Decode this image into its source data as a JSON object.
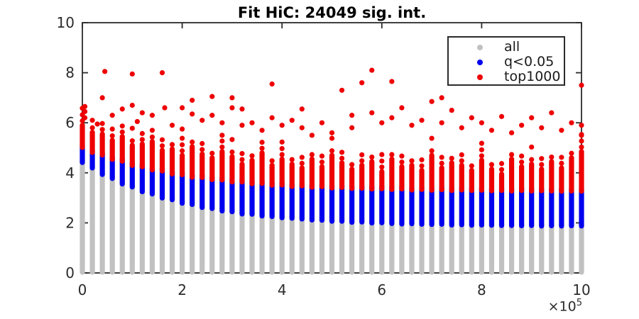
{
  "style": {
    "axis_color": "#2b2b2b",
    "tick_label_color": "#2b2b2b",
    "title_color": "#000000",
    "background": "#ffffff"
  },
  "chart_data": {
    "type": "scatter",
    "title": "Fit HiC: 24049 sig. int.",
    "grid": false,
    "legend_position": "top-right",
    "x_axis": {
      "lim": [
        0,
        10
      ],
      "tick_values": [
        0,
        2,
        4,
        6,
        8,
        10
      ],
      "tick_labels": [
        "0",
        "2",
        "4",
        "6",
        "8",
        "10"
      ],
      "multiplier": "×10",
      "exponent": "5"
    },
    "y_axis": {
      "lim": [
        0,
        10
      ],
      "tick_values": [
        0,
        2,
        4,
        6,
        8,
        10
      ],
      "tick_labels": [
        "0",
        "2",
        "4",
        "6",
        "8",
        "10"
      ]
    },
    "legend": {
      "items": [
        {
          "label": "all",
          "color": "#c1c1c1"
        },
        {
          "label": "q<0.05",
          "color": "#0000ee"
        },
        {
          "label": "top1000",
          "color": "#ee0000"
        }
      ]
    },
    "columns_format": [
      "x_1e5",
      "all_top",
      "q_top",
      "top1000_top"
    ],
    "columns_base_y": 0,
    "columns": [
      [
        0.0,
        4.5,
        5.1,
        5.9
      ],
      [
        0.2,
        4.28,
        4.9,
        5.62
      ],
      [
        0.4,
        4.02,
        4.8,
        5.55
      ],
      [
        0.6,
        3.86,
        4.62,
        5.3
      ],
      [
        0.8,
        3.64,
        4.55,
        5.45
      ],
      [
        1.0,
        3.52,
        4.38,
        5.1
      ],
      [
        1.2,
        3.33,
        4.33,
        5.15
      ],
      [
        1.4,
        3.24,
        4.2,
        5.25
      ],
      [
        1.6,
        3.08,
        4.16,
        4.9
      ],
      [
        1.8,
        3.01,
        4.04,
        4.95
      ],
      [
        2.0,
        2.87,
        4.01,
        4.7
      ],
      [
        2.2,
        2.82,
        3.91,
        5.05
      ],
      [
        2.4,
        2.7,
        3.9,
        4.75
      ],
      [
        2.6,
        2.66,
        3.81,
        4.6
      ],
      [
        2.8,
        2.56,
        3.8,
        4.85
      ],
      [
        3.0,
        2.53,
        3.72,
        4.65
      ],
      [
        3.2,
        2.44,
        3.72,
        4.35
      ],
      [
        3.4,
        2.43,
        3.65,
        4.5
      ],
      [
        3.6,
        2.36,
        3.66,
        4.8
      ],
      [
        3.8,
        2.34,
        3.59,
        4.3
      ],
      [
        4.0,
        2.29,
        3.6,
        4.55
      ],
      [
        4.2,
        2.27,
        3.54,
        4.35
      ],
      [
        4.4,
        2.24,
        3.56,
        4.2
      ],
      [
        4.6,
        2.2,
        3.51,
        4.55
      ],
      [
        4.8,
        2.19,
        3.53,
        4.25
      ],
      [
        5.0,
        2.15,
        3.48,
        4.7
      ],
      [
        5.2,
        2.15,
        3.5,
        4.4
      ],
      [
        5.4,
        2.11,
        3.46,
        4.15
      ],
      [
        5.6,
        2.12,
        3.47,
        4.3
      ],
      [
        5.8,
        2.08,
        3.44,
        4.45
      ],
      [
        6.0,
        2.09,
        3.45,
        4.05
      ],
      [
        6.2,
        2.06,
        3.42,
        4.55
      ],
      [
        6.4,
        2.04,
        3.44,
        4.25
      ],
      [
        6.6,
        2.05,
        3.4,
        4.3
      ],
      [
        6.8,
        2.03,
        3.42,
        4.1
      ],
      [
        7.0,
        2.02,
        3.39,
        4.7
      ],
      [
        7.2,
        2.03,
        3.41,
        4.2
      ],
      [
        7.4,
        2.0,
        3.38,
        4.4
      ],
      [
        7.6,
        2.01,
        3.4,
        4.3
      ],
      [
        7.8,
        1.99,
        3.38,
        4.1
      ],
      [
        8.0,
        2.0,
        3.39,
        4.5
      ],
      [
        8.2,
        1.99,
        3.37,
        4.15
      ],
      [
        8.4,
        1.98,
        3.38,
        3.95
      ],
      [
        8.6,
        1.98,
        3.36,
        4.55
      ],
      [
        8.8,
        1.97,
        3.38,
        4.25
      ],
      [
        9.0,
        1.98,
        3.36,
        4.35
      ],
      [
        9.2,
        1.96,
        3.37,
        4.15
      ],
      [
        9.4,
        1.97,
        3.36,
        4.45
      ],
      [
        9.6,
        1.96,
        3.35,
        4.2
      ],
      [
        9.8,
        1.97,
        3.36,
        4.6
      ],
      [
        10.0,
        1.96,
        3.35,
        4.85
      ]
    ],
    "fringe_offsets": [
      0.18,
      0.42,
      0.68
    ],
    "outliers": [
      [
        0.05,
        6.2
      ],
      [
        0.05,
        6.45
      ],
      [
        0.05,
        6.65
      ],
      [
        0.2,
        6.1
      ],
      [
        0.3,
        5.95
      ],
      [
        0.4,
        7.0
      ],
      [
        0.45,
        8.05
      ],
      [
        0.6,
        6.3
      ],
      [
        0.6,
        5.75
      ],
      [
        0.8,
        6.55
      ],
      [
        1.0,
        7.95
      ],
      [
        1.0,
        6.7
      ],
      [
        1.1,
        6.05
      ],
      [
        1.2,
        6.4
      ],
      [
        1.4,
        6.3
      ],
      [
        1.4,
        5.7
      ],
      [
        1.6,
        8.0
      ],
      [
        1.65,
        6.6
      ],
      [
        1.8,
        5.9
      ],
      [
        2.0,
        6.6
      ],
      [
        2.0,
        5.75
      ],
      [
        2.2,
        6.9
      ],
      [
        2.2,
        6.35
      ],
      [
        2.4,
        6.1
      ],
      [
        2.6,
        7.05
      ],
      [
        2.6,
        6.3
      ],
      [
        2.8,
        6.0
      ],
      [
        2.8,
        5.5
      ],
      [
        3.0,
        7.0
      ],
      [
        3.0,
        6.6
      ],
      [
        3.2,
        6.55
      ],
      [
        3.2,
        5.9
      ],
      [
        3.4,
        6.0
      ],
      [
        3.6,
        5.7
      ],
      [
        3.8,
        7.55
      ],
      [
        3.8,
        6.2
      ],
      [
        4.0,
        5.9
      ],
      [
        4.2,
        6.1
      ],
      [
        4.4,
        6.55
      ],
      [
        4.4,
        5.8
      ],
      [
        4.6,
        5.5
      ],
      [
        4.8,
        6.0
      ],
      [
        5.0,
        5.6
      ],
      [
        5.2,
        7.3
      ],
      [
        5.4,
        6.3
      ],
      [
        5.4,
        5.8
      ],
      [
        5.6,
        7.6
      ],
      [
        5.8,
        8.1
      ],
      [
        5.8,
        6.4
      ],
      [
        6.0,
        6.0
      ],
      [
        6.2,
        7.65
      ],
      [
        6.2,
        6.2
      ],
      [
        6.4,
        6.6
      ],
      [
        6.6,
        5.9
      ],
      [
        6.8,
        6.1
      ],
      [
        7.0,
        6.85
      ],
      [
        7.2,
        7.0
      ],
      [
        7.2,
        6.0
      ],
      [
        7.4,
        6.5
      ],
      [
        7.6,
        5.8
      ],
      [
        7.8,
        6.2
      ],
      [
        8.0,
        6.0
      ],
      [
        8.2,
        5.7
      ],
      [
        8.4,
        6.25
      ],
      [
        8.6,
        5.6
      ],
      [
        8.8,
        5.9
      ],
      [
        9.0,
        6.2
      ],
      [
        9.2,
        7.6
      ],
      [
        9.2,
        5.8
      ],
      [
        9.4,
        6.4
      ],
      [
        9.6,
        5.7
      ],
      [
        9.8,
        6.0
      ],
      [
        10.0,
        7.5
      ],
      [
        10.0,
        5.9
      ],
      [
        10.0,
        5.5
      ]
    ]
  }
}
